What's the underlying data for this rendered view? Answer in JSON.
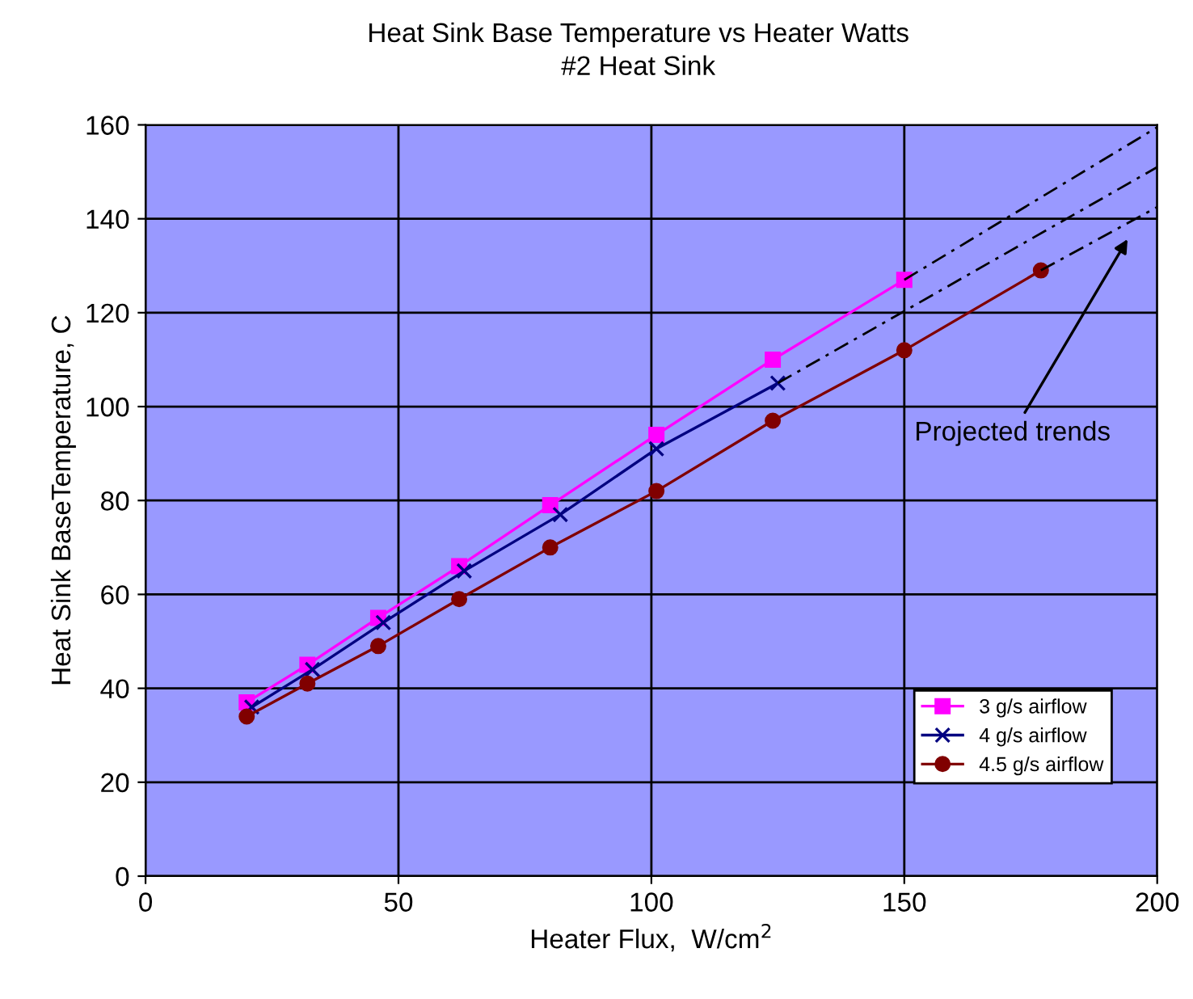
{
  "chart_data": {
    "type": "line",
    "title": "Heat Sink Base Temperature vs Heater Watts",
    "subtitle": "#2 Heat Sink",
    "xlabel": "Heater Flux,  W/cm$^{2}$",
    "ylabel": "Heat Sink BaseTemperature, C",
    "series": [
      {
        "name": "3 g/s airflow",
        "color": "#ff00ff",
        "marker": "square",
        "x": [
          20,
          32,
          46,
          62,
          80,
          101,
          124,
          150
        ],
        "values": [
          37,
          45,
          55,
          66,
          79,
          94,
          110,
          127
        ]
      },
      {
        "name": "4 g/s airflow",
        "color": "#000080",
        "marker": "cross",
        "x": [
          21,
          33,
          47,
          63,
          82,
          101,
          125
        ],
        "values": [
          36,
          44,
          54,
          65,
          77,
          91,
          105
        ]
      },
      {
        "name": "4.5 g/s airflow",
        "color": "#800000",
        "marker": "circle",
        "x": [
          20,
          32,
          46,
          62,
          80,
          101,
          124,
          150,
          177
        ],
        "values": [
          34,
          41,
          49,
          59,
          70,
          82,
          97,
          112,
          129
        ]
      },
      {
        "color": "#000000",
        "marker": "none",
        "line_style": "dashed",
        "x": [
          150,
          200
        ],
        "values": [
          127,
          159.5
        ]
      },
      {
        "color": "#000000",
        "marker": "none",
        "line_style": "dashed",
        "x": [
          125,
          200
        ],
        "values": [
          105,
          151
        ]
      },
      {
        "color": "#000000",
        "marker": "none",
        "line_style": "dashed",
        "x": [
          177,
          200
        ],
        "values": [
          129,
          142.5
        ]
      }
    ],
    "annotations": [
      "Projected trends"
    ],
    "xlim": [
      0,
      200
    ],
    "xticks": [
      0,
      50,
      100,
      150,
      200
    ],
    "ylim": [
      0,
      160
    ],
    "yticks": [
      0,
      20,
      40,
      60,
      80,
      100,
      120,
      140,
      160
    ],
    "grid": true,
    "legend": "bottom right"
  }
}
